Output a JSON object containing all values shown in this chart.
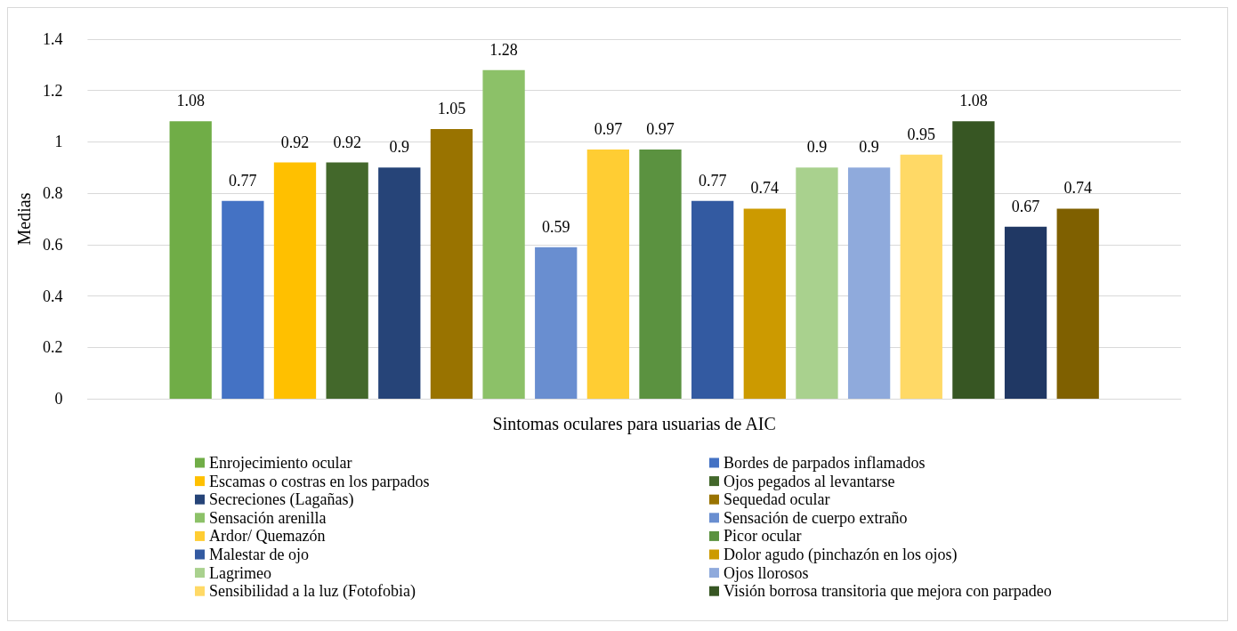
{
  "chart_data": {
    "type": "bar",
    "xlabel": "Sintomas oculares para usuarias de AIC",
    "ylabel": "Medias",
    "categories": [
      null
    ],
    "ylim": [
      0,
      1.4
    ],
    "yticks": [
      0,
      0.2,
      0.4,
      0.6,
      0.8,
      1,
      1.2,
      1.4
    ],
    "grid": "y",
    "legend": "bottom",
    "data_labels": true,
    "series": [
      {
        "name": "Enrojecimiento ocular",
        "color": "#70ad47",
        "values": [
          1.08
        ]
      },
      {
        "name": "Bordes de parpados inflamados",
        "color": "#4472c4",
        "values": [
          0.77
        ]
      },
      {
        "name": "Escamas o costras en los parpados",
        "color": "#ffc000",
        "values": [
          0.92
        ]
      },
      {
        "name": "Ojos pegados al levantarse",
        "color": "#43682b",
        "values": [
          0.92
        ]
      },
      {
        "name": "Secreciones (Lagañas)",
        "color": "#264478",
        "values": [
          0.9
        ]
      },
      {
        "name": "Sequedad ocular",
        "color": "#997300",
        "values": [
          1.05
        ]
      },
      {
        "name": "Sensación arenilla",
        "color": "#8cc168",
        "values": [
          1.28
        ]
      },
      {
        "name": "Sensación de cuerpo extraño",
        "color": "#698ed0",
        "values": [
          0.59
        ]
      },
      {
        "name": "Ardor/ Quemazón",
        "color": "#ffcd33",
        "values": [
          0.97
        ]
      },
      {
        "name": "Picor ocular",
        "color": "#5b9240",
        "values": [
          0.97
        ]
      },
      {
        "name": "Malestar de ojo",
        "color": "#335aa1",
        "values": [
          0.77
        ]
      },
      {
        "name": "Dolor agudo (pinchazón en los ojos)",
        "color": "#cc9a00",
        "values": [
          0.74
        ]
      },
      {
        "name": "Lagrimeo",
        "color": "#a9d18e",
        "values": [
          0.9
        ]
      },
      {
        "name": "Ojos llorosos",
        "color": "#8faadc",
        "values": [
          0.9
        ]
      },
      {
        "name": "Sensibilidad a la luz (Fotofobia)",
        "color": "#ffd966",
        "values": [
          0.95
        ]
      },
      {
        "name": "Visión borrosa transitoria que mejora con parpadeo",
        "color": "#375623",
        "values": [
          1.08
        ]
      },
      {
        "color": "#203864",
        "values": [
          0.67
        ]
      },
      {
        "color": "#7f6000",
        "values": [
          0.74
        ]
      }
    ]
  }
}
